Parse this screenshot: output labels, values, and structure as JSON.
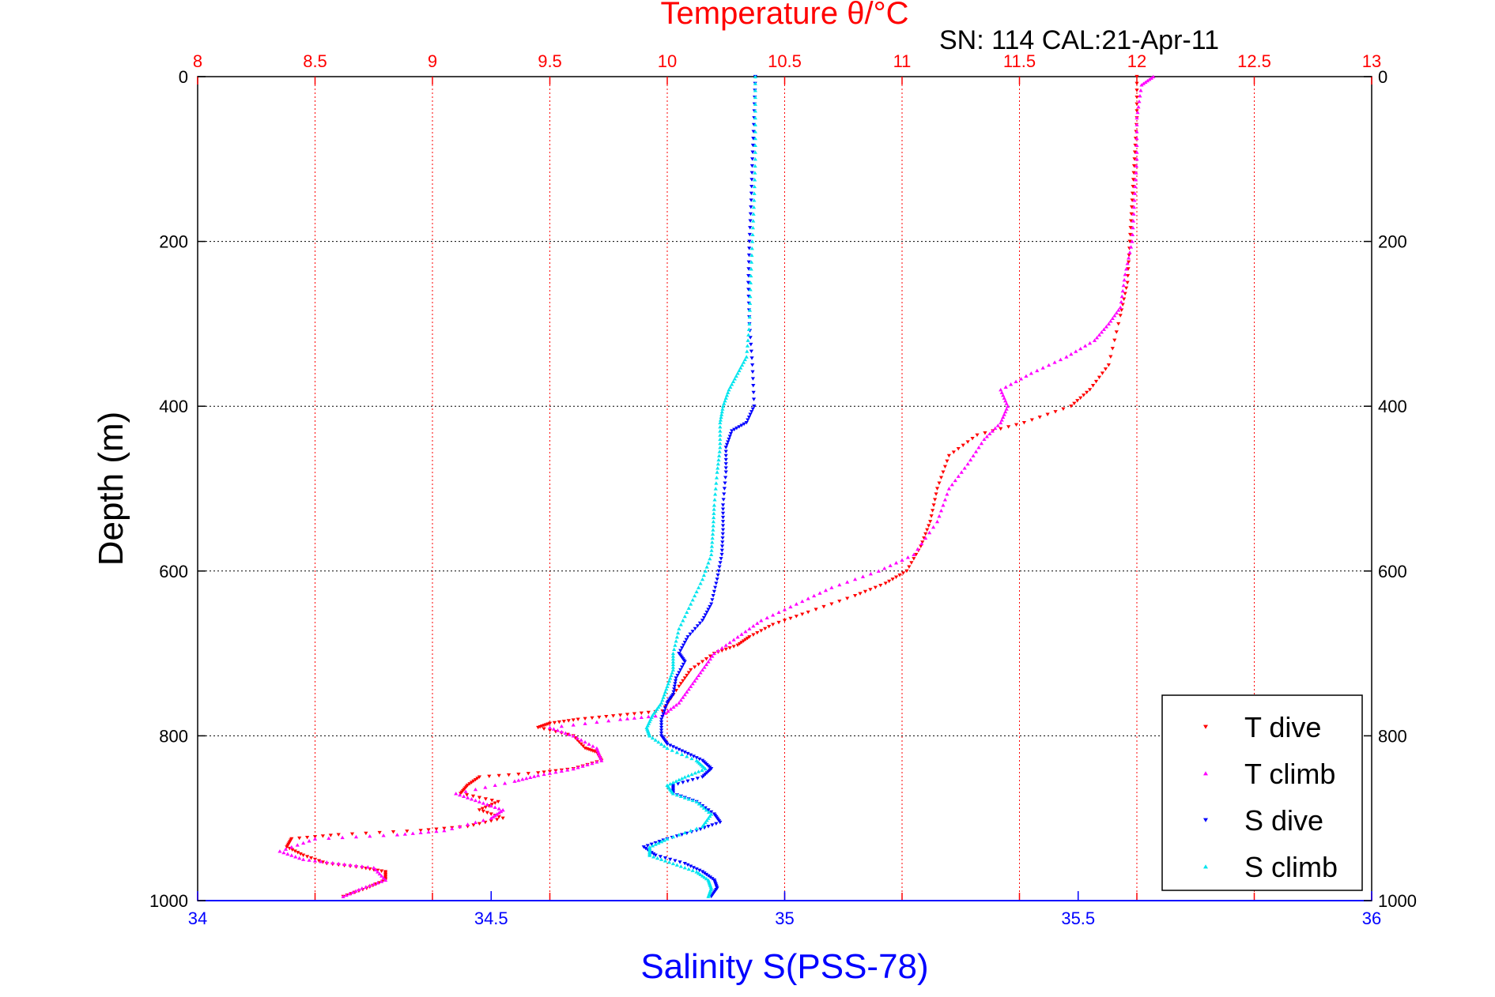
{
  "chart_data": {
    "type": "scatter",
    "title": "Temperature θ/°C",
    "subtitle": "SN: 114  CAL:21-Apr-11",
    "xlabel": "Salinity S(PSS-78)",
    "ylabel": "Depth (m)",
    "x_bottom": {
      "label": "Salinity S(PSS-78)",
      "lim": [
        34,
        36
      ],
      "ticks": [
        "34",
        "34.5",
        "35",
        "35.5",
        "36"
      ],
      "color": "#0000ff"
    },
    "x_top": {
      "label": "Temperature θ/°C",
      "lim": [
        8,
        13
      ],
      "ticks": [
        "8",
        "8.5",
        "9",
        "9.5",
        "10",
        "10.5",
        "11",
        "11.5",
        "12",
        "12.5",
        "13"
      ],
      "color": "#ff0000"
    },
    "y": {
      "label": "Depth (m)",
      "lim": [
        0,
        1000
      ],
      "reversed": true,
      "ticks": [
        "0",
        "200",
        "400",
        "600",
        "800",
        "1000"
      ]
    },
    "grid": true,
    "legend_position": "bottom-right",
    "series": [
      {
        "name": "T dive",
        "axis": "temperature",
        "color": "#ff0000",
        "marker": "triangle-down",
        "points": [
          [
            12.0,
            0
          ],
          [
            12.0,
            50
          ],
          [
            11.99,
            100
          ],
          [
            11.98,
            150
          ],
          [
            11.97,
            200
          ],
          [
            11.96,
            250
          ],
          [
            11.93,
            290
          ],
          [
            11.88,
            350
          ],
          [
            11.8,
            380
          ],
          [
            11.72,
            400
          ],
          [
            11.52,
            420
          ],
          [
            11.32,
            435
          ],
          [
            11.2,
            460
          ],
          [
            11.15,
            500
          ],
          [
            11.12,
            540
          ],
          [
            11.08,
            570
          ],
          [
            11.02,
            600
          ],
          [
            10.93,
            615
          ],
          [
            10.8,
            630
          ],
          [
            10.6,
            650
          ],
          [
            10.45,
            665
          ],
          [
            10.35,
            680
          ],
          [
            10.3,
            690
          ],
          [
            10.2,
            700
          ],
          [
            10.1,
            720
          ],
          [
            10.05,
            740
          ],
          [
            9.98,
            770
          ],
          [
            9.8,
            775
          ],
          [
            9.62,
            780
          ],
          [
            9.5,
            785
          ],
          [
            9.45,
            790
          ],
          [
            9.6,
            800
          ],
          [
            9.65,
            815
          ],
          [
            9.7,
            820
          ],
          [
            9.72,
            830
          ],
          [
            9.6,
            840
          ],
          [
            9.45,
            845
          ],
          [
            9.2,
            850
          ],
          [
            9.15,
            860
          ],
          [
            9.12,
            870
          ],
          [
            9.28,
            880
          ],
          [
            9.2,
            890
          ],
          [
            9.3,
            900
          ],
          [
            9.15,
            910
          ],
          [
            8.95,
            915
          ],
          [
            8.6,
            920
          ],
          [
            8.4,
            925
          ],
          [
            8.38,
            935
          ],
          [
            8.45,
            945
          ],
          [
            8.55,
            955
          ],
          [
            8.7,
            960
          ],
          [
            8.8,
            965
          ],
          [
            8.8,
            975
          ],
          [
            8.72,
            985
          ],
          [
            8.62,
            995
          ]
        ]
      },
      {
        "name": "T climb",
        "axis": "temperature",
        "color": "#ff00ff",
        "marker": "triangle-up",
        "points": [
          [
            12.07,
            0
          ],
          [
            12.02,
            10
          ],
          [
            12.0,
            50
          ],
          [
            12.0,
            100
          ],
          [
            11.99,
            150
          ],
          [
            11.98,
            200
          ],
          [
            11.95,
            240
          ],
          [
            11.93,
            280
          ],
          [
            11.88,
            300
          ],
          [
            11.82,
            320
          ],
          [
            11.7,
            340
          ],
          [
            11.55,
            360
          ],
          [
            11.42,
            380
          ],
          [
            11.45,
            400
          ],
          [
            11.42,
            420
          ],
          [
            11.35,
            440
          ],
          [
            11.28,
            470
          ],
          [
            11.2,
            500
          ],
          [
            11.15,
            540
          ],
          [
            11.05,
            580
          ],
          [
            10.9,
            600
          ],
          [
            10.7,
            620
          ],
          [
            10.55,
            640
          ],
          [
            10.4,
            660
          ],
          [
            10.3,
            680
          ],
          [
            10.2,
            700
          ],
          [
            10.15,
            720
          ],
          [
            10.1,
            740
          ],
          [
            10.05,
            760
          ],
          [
            9.98,
            775
          ],
          [
            9.8,
            780
          ],
          [
            9.5,
            790
          ],
          [
            9.6,
            800
          ],
          [
            9.7,
            815
          ],
          [
            9.72,
            830
          ],
          [
            9.6,
            840
          ],
          [
            9.45,
            848
          ],
          [
            9.35,
            855
          ],
          [
            9.1,
            870
          ],
          [
            9.2,
            880
          ],
          [
            9.3,
            890
          ],
          [
            9.25,
            900
          ],
          [
            9.05,
            915
          ],
          [
            8.85,
            920
          ],
          [
            8.5,
            925
          ],
          [
            8.35,
            940
          ],
          [
            8.45,
            950
          ],
          [
            8.6,
            955
          ],
          [
            8.75,
            960
          ],
          [
            8.8,
            975
          ],
          [
            8.7,
            985
          ],
          [
            8.62,
            995
          ]
        ]
      },
      {
        "name": "S dive",
        "axis": "salinity",
        "color": "#0000ff",
        "marker": "triangle-down",
        "points": [
          [
            34.95,
            0
          ],
          [
            34.948,
            50
          ],
          [
            34.945,
            100
          ],
          [
            34.943,
            150
          ],
          [
            34.94,
            200
          ],
          [
            34.938,
            250
          ],
          [
            34.94,
            300
          ],
          [
            34.945,
            350
          ],
          [
            34.948,
            400
          ],
          [
            34.935,
            420
          ],
          [
            34.91,
            430
          ],
          [
            34.9,
            450
          ],
          [
            34.9,
            480
          ],
          [
            34.895,
            520
          ],
          [
            34.895,
            550
          ],
          [
            34.893,
            580
          ],
          [
            34.885,
            610
          ],
          [
            34.875,
            640
          ],
          [
            34.86,
            660
          ],
          [
            34.835,
            680
          ],
          [
            34.82,
            700
          ],
          [
            34.83,
            710
          ],
          [
            34.815,
            730
          ],
          [
            34.81,
            750
          ],
          [
            34.8,
            760
          ],
          [
            34.79,
            780
          ],
          [
            34.79,
            800
          ],
          [
            34.8,
            810
          ],
          [
            34.83,
            820
          ],
          [
            34.86,
            830
          ],
          [
            34.875,
            840
          ],
          [
            34.86,
            850
          ],
          [
            34.81,
            860
          ],
          [
            34.81,
            870
          ],
          [
            34.85,
            880
          ],
          [
            34.88,
            895
          ],
          [
            34.89,
            905
          ],
          [
            34.85,
            915
          ],
          [
            34.8,
            925
          ],
          [
            34.76,
            935
          ],
          [
            34.78,
            945
          ],
          [
            34.83,
            955
          ],
          [
            34.86,
            965
          ],
          [
            34.88,
            975
          ],
          [
            34.885,
            985
          ],
          [
            34.875,
            995
          ]
        ]
      },
      {
        "name": "S climb",
        "axis": "salinity",
        "color": "#00e5ee",
        "marker": "triangle-up",
        "points": [
          [
            34.95,
            0
          ],
          [
            34.95,
            50
          ],
          [
            34.95,
            100
          ],
          [
            34.948,
            150
          ],
          [
            34.945,
            200
          ],
          [
            34.942,
            250
          ],
          [
            34.94,
            300
          ],
          [
            34.935,
            340
          ],
          [
            34.92,
            360
          ],
          [
            34.905,
            380
          ],
          [
            34.895,
            400
          ],
          [
            34.89,
            420
          ],
          [
            34.89,
            450
          ],
          [
            34.885,
            480
          ],
          [
            34.88,
            520
          ],
          [
            34.878,
            550
          ],
          [
            34.875,
            580
          ],
          [
            34.86,
            610
          ],
          [
            34.84,
            640
          ],
          [
            34.82,
            670
          ],
          [
            34.81,
            700
          ],
          [
            34.81,
            720
          ],
          [
            34.8,
            740
          ],
          [
            34.79,
            760
          ],
          [
            34.775,
            775
          ],
          [
            34.765,
            790
          ],
          [
            34.77,
            800
          ],
          [
            34.8,
            815
          ],
          [
            34.85,
            830
          ],
          [
            34.865,
            840
          ],
          [
            34.83,
            850
          ],
          [
            34.8,
            860
          ],
          [
            34.81,
            870
          ],
          [
            34.85,
            880
          ],
          [
            34.875,
            895
          ],
          [
            34.86,
            910
          ],
          [
            34.8,
            925
          ],
          [
            34.77,
            935
          ],
          [
            34.77,
            945
          ],
          [
            34.81,
            955
          ],
          [
            34.85,
            965
          ],
          [
            34.87,
            975
          ],
          [
            34.875,
            985
          ],
          [
            34.87,
            995
          ]
        ]
      }
    ]
  }
}
